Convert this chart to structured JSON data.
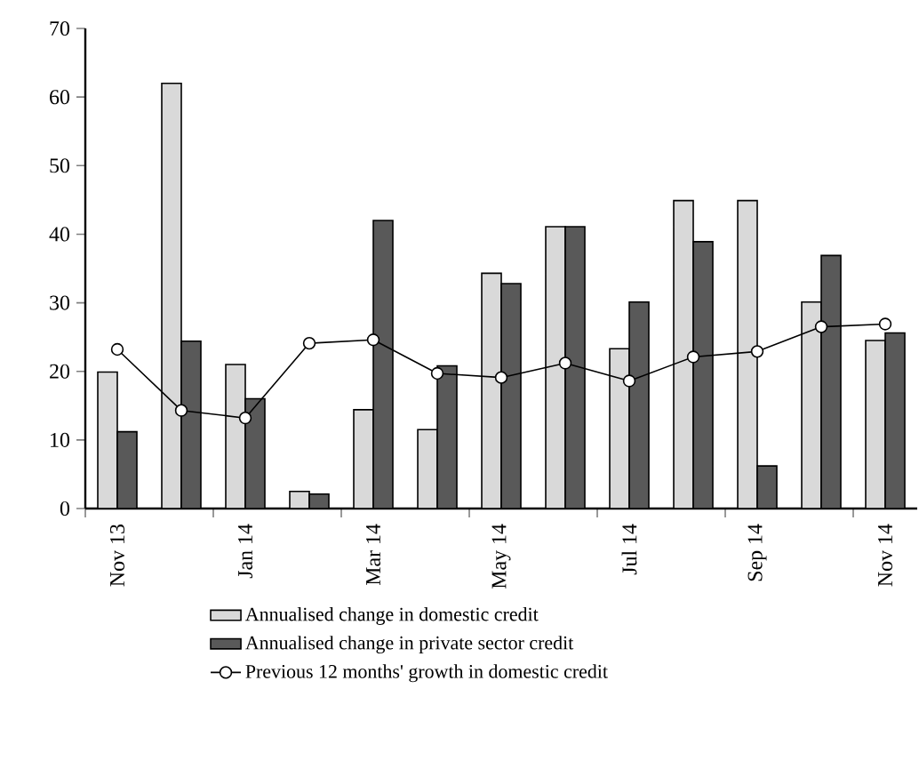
{
  "chart_data": {
    "type": "bar",
    "categories": [
      "Nov 13",
      null,
      "Jan 14",
      null,
      "Mar 14",
      null,
      "May 14",
      null,
      "Jul 14",
      null,
      "Sep 14",
      null,
      "Nov 14"
    ],
    "series": [
      {
        "name": "Annualised change in domestic credit",
        "color": "#d9d9d9",
        "values": [
          19.9,
          62,
          21,
          2.5,
          14.4,
          11.5,
          34.3,
          41.1,
          23.3,
          44.9,
          44.9,
          30.1,
          24.5
        ]
      },
      {
        "name": "Annualised change in private sector credit",
        "color": "#595959",
        "values": [
          11.2,
          24.4,
          16,
          2.1,
          42.0,
          20.8,
          32.8,
          41.1,
          30.1,
          38.9,
          6.2,
          36.9,
          25.6
        ]
      },
      {
        "name": "Previous 12 months' growth in domestic credit",
        "color": "#000000",
        "type": "line",
        "marker": "circle",
        "values": [
          23.2,
          14.3,
          13.2,
          24.1,
          24.6,
          19.7,
          19.1,
          21.2,
          18.6,
          22.1,
          22.9,
          26.5,
          26.9
        ]
      }
    ],
    "ylim": [
      0,
      70
    ],
    "yticks": [
      0,
      10,
      20,
      30,
      40,
      50,
      60,
      70
    ],
    "legend": "bottom"
  }
}
